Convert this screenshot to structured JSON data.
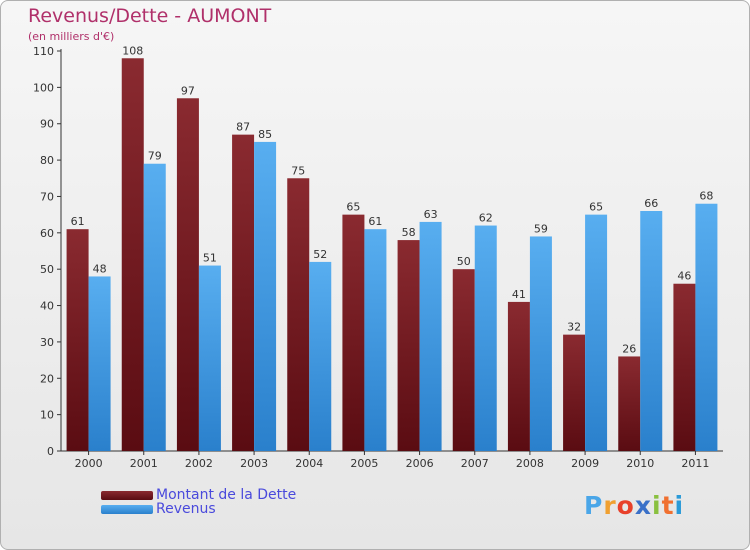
{
  "title": "Revenus/Dette - AUMONT",
  "subtitle": "(en milliers d'€)",
  "chart_data": {
    "type": "bar",
    "categories": [
      "2000",
      "2001",
      "2002",
      "2003",
      "2004",
      "2005",
      "2006",
      "2007",
      "2008",
      "2009",
      "2010",
      "2011"
    ],
    "series": [
      {
        "name": "Montant de la Dette",
        "values": [
          61,
          108,
          97,
          87,
          75,
          65,
          58,
          50,
          41,
          32,
          26,
          46
        ],
        "color": "#7a1e24"
      },
      {
        "name": "Revenus",
        "values": [
          48,
          79,
          51,
          85,
          52,
          61,
          63,
          62,
          59,
          65,
          66,
          68
        ],
        "color": "#3e9ae6"
      }
    ],
    "ylim": [
      0,
      110
    ],
    "yticks": [
      "0",
      "10",
      "20",
      "30",
      "40",
      "50",
      "60",
      "70",
      "80",
      "90",
      "100",
      "110"
    ],
    "grid": false,
    "legend_position": "bottom-left"
  },
  "logo": {
    "letters": [
      "P",
      "r",
      "o",
      "x",
      "i",
      "t",
      "i"
    ],
    "colors": [
      "#4aa6e8",
      "#f0a030",
      "#e8402a",
      "#3a70c8",
      "#8ac040",
      "#f07030",
      "#2a9ad8"
    ]
  }
}
